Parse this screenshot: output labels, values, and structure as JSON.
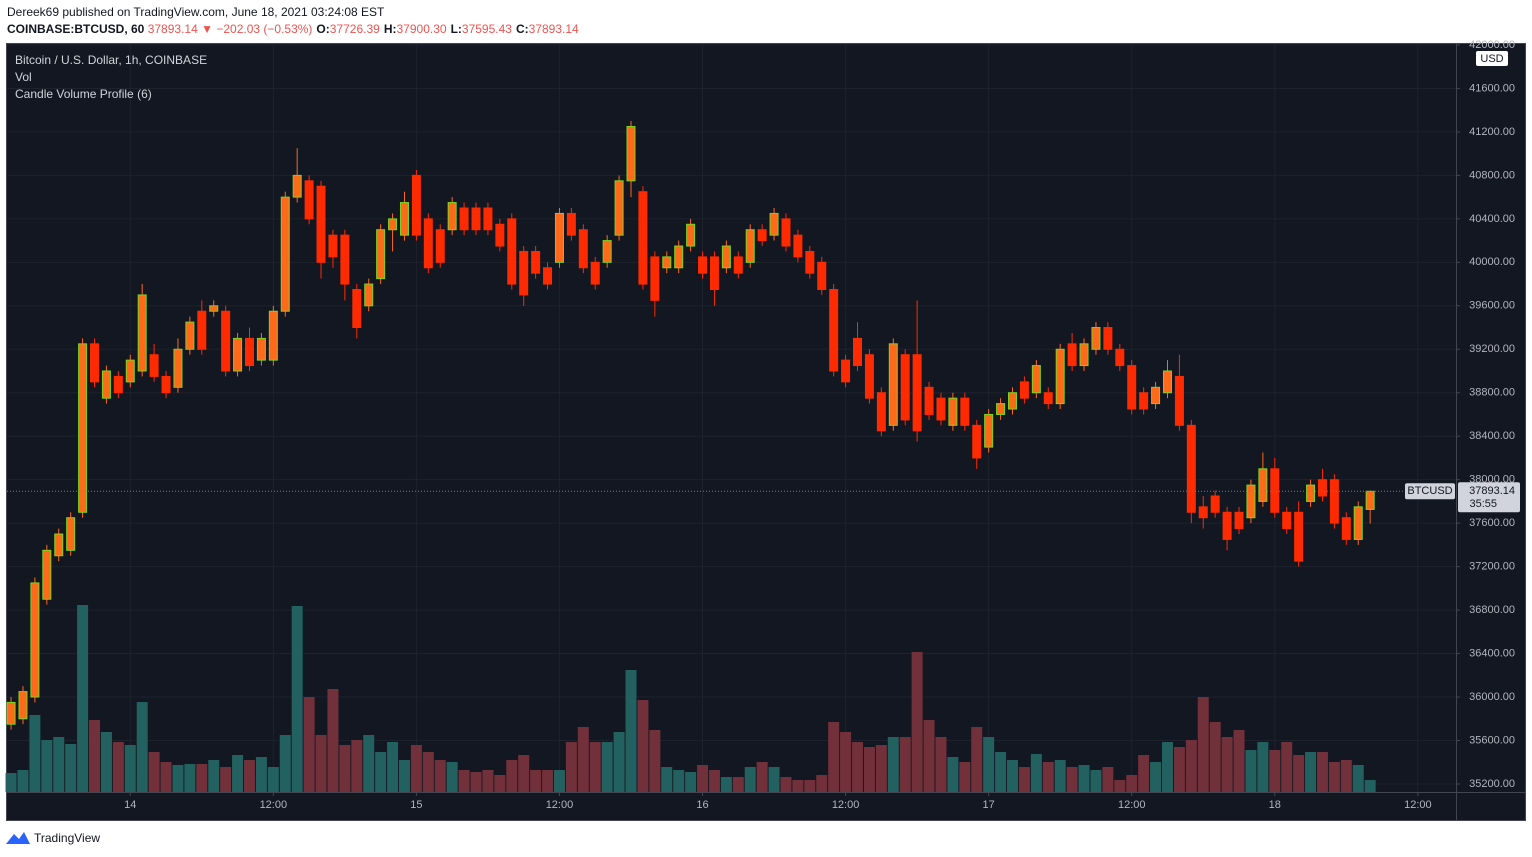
{
  "header": {
    "published": "Dereek69 published on TradingView.com, June 18, 2021 03:24:08 EST",
    "symbol": "COINBASE:BTCUSD, 60",
    "last": "37893.14",
    "arrow": "▼",
    "change": "−202.03 (−0.53%)",
    "ohlc": [
      {
        "key": "O:",
        "value": "37726.39"
      },
      {
        "key": "H:",
        "value": "37900.30"
      },
      {
        "key": "L:",
        "value": "37595.43"
      },
      {
        "key": "C:",
        "value": "37893.14"
      }
    ]
  },
  "footer": {
    "brand": "TradingView"
  },
  "chart_data": {
    "type": "candlestick",
    "legend": [
      "Bitcoin / U.S. Dollar, 1h, COINBASE",
      "Vol",
      "Candle Volume Profile (6)"
    ],
    "currency": "USD",
    "price_tag": "BTCUSD",
    "countdown": "35:55",
    "up_color": "#ff6a1a",
    "up_border": "#7ed321",
    "down_color": "#ff2a00",
    "volume_up_color": "#22615f",
    "volume_down_color": "#72303a",
    "grid": true,
    "xlim": [
      -0.34,
      121.2
    ],
    "xticks": [
      {
        "value": 10,
        "label": "14"
      },
      {
        "value": 22,
        "label": "12:00"
      },
      {
        "value": 34,
        "label": "15"
      },
      {
        "value": 46,
        "label": "12:00"
      },
      {
        "value": 58,
        "label": "16"
      },
      {
        "value": 70,
        "label": "12:00"
      },
      {
        "value": 82,
        "label": "17"
      },
      {
        "value": 94,
        "label": "12:00"
      },
      {
        "value": 106,
        "label": "18"
      },
      {
        "value": 118,
        "label": "12:00"
      }
    ],
    "ylim": [
      35126,
      42009
    ],
    "yticks": [
      {
        "value": 35200,
        "label": "35200.00"
      },
      {
        "value": 35600,
        "label": "35600.00"
      },
      {
        "value": 36000,
        "label": "36000.00"
      },
      {
        "value": 36400,
        "label": "36400.00"
      },
      {
        "value": 36800,
        "label": "36800.00"
      },
      {
        "value": 37200,
        "label": "37200.00"
      },
      {
        "value": 37600,
        "label": "37600.00"
      },
      {
        "value": 38000,
        "label": "38000.00"
      },
      {
        "value": 38400,
        "label": "38400.00"
      },
      {
        "value": 38800,
        "label": "38800.00"
      },
      {
        "value": 39200,
        "label": "39200.00"
      },
      {
        "value": 39600,
        "label": "39600.00"
      },
      {
        "value": 40000,
        "label": "40000.00"
      },
      {
        "value": 40400,
        "label": "40400.00"
      },
      {
        "value": 40800,
        "label": "40800.00"
      },
      {
        "value": 41200,
        "label": "41200.00"
      },
      {
        "value": 41600,
        "label": "41600.00"
      },
      {
        "value": 42000,
        "label": "42000.00"
      }
    ],
    "volume_lim": [
      0,
      190
    ],
    "open": [
      35750,
      35800,
      36000,
      36900,
      37300,
      37350,
      37700,
      39250,
      38750,
      38950,
      38900,
      39000,
      39150,
      38950,
      38850,
      39200,
      39550,
      39550,
      39550,
      39000,
      39300,
      39100,
      39100,
      39550,
      40600,
      40750,
      40700,
      40250,
      40250,
      39750,
      39600,
      39850,
      40300,
      40250,
      40800,
      40400,
      40300,
      40300,
      40500,
      40500,
      40500,
      40350,
      40400,
      40100,
      40100,
      39950,
      40000,
      40450,
      40300,
      40000,
      40000,
      40250,
      40750,
      40650,
      40050,
      39950,
      39950,
      40150,
      40050,
      40050,
      39950,
      40050,
      40000,
      40300,
      40250,
      40400,
      40250,
      40100,
      40000,
      39750,
      39100,
      39300,
      39150,
      38800,
      38500,
      39150,
      39150,
      38850,
      38750,
      38500,
      38750,
      38500,
      38300,
      38600,
      38650,
      38900,
      38800,
      38800,
      38700,
      39250,
      39050,
      39200,
      39400,
      39200,
      39050,
      38800,
      38700,
      38800,
      38950,
      38500,
      37750,
      37850,
      37700,
      37700,
      37650,
      37800,
      38100,
      37700,
      37700,
      37800,
      38000,
      38000,
      37650,
      37450,
      37726.39
    ],
    "high": [
      36000,
      36100,
      37100,
      37400,
      37550,
      37700,
      39300,
      39300,
      39050,
      39000,
      39150,
      39800,
      39250,
      39000,
      39300,
      39500,
      39650,
      39650,
      39600,
      39350,
      39400,
      39350,
      39600,
      40650,
      41050,
      40800,
      40750,
      40300,
      40300,
      39800,
      39850,
      40350,
      40450,
      40650,
      40850,
      40450,
      40350,
      40600,
      40550,
      40550,
      40550,
      40400,
      40450,
      40150,
      40150,
      40000,
      40500,
      40500,
      40350,
      40050,
      40250,
      40800,
      41300,
      40700,
      40100,
      40100,
      40200,
      40400,
      40100,
      40100,
      40200,
      40100,
      40350,
      40350,
      40500,
      40450,
      40300,
      40150,
      40050,
      39800,
      39150,
      39450,
      39200,
      38850,
      39300,
      39200,
      39650,
      38900,
      38800,
      38800,
      38800,
      38550,
      38650,
      38750,
      38850,
      38950,
      39100,
      38850,
      39250,
      39350,
      39300,
      39450,
      39450,
      39250,
      39100,
      38850,
      38900,
      39100,
      39150,
      38550,
      37850,
      37900,
      37750,
      37750,
      38000,
      38250,
      38200,
      37750,
      37800,
      38000,
      38100,
      38050,
      37700,
      37800,
      37900.3
    ],
    "low": [
      35700,
      35750,
      35950,
      36850,
      37250,
      37300,
      37650,
      38850,
      38700,
      38750,
      38850,
      38950,
      38900,
      38750,
      38800,
      39150,
      39150,
      39500,
      38950,
      38950,
      39000,
      39050,
      39050,
      39500,
      40550,
      40350,
      39850,
      39950,
      39650,
      39300,
      39550,
      39800,
      40100,
      40200,
      40200,
      39900,
      39950,
      40250,
      40250,
      40250,
      40250,
      40100,
      39750,
      39600,
      39850,
      39750,
      39950,
      40200,
      39900,
      39750,
      39950,
      40200,
      40600,
      39750,
      39500,
      39900,
      39900,
      40100,
      39850,
      39600,
      39900,
      39850,
      39950,
      40150,
      40200,
      40100,
      40000,
      39850,
      39700,
      38950,
      38850,
      39000,
      38700,
      38400,
      38450,
      38500,
      38350,
      38550,
      38500,
      38450,
      38450,
      38100,
      38250,
      38550,
      38600,
      38700,
      38750,
      38650,
      38650,
      39000,
      39000,
      39150,
      39150,
      39000,
      38600,
      38600,
      38650,
      38750,
      38450,
      37600,
      37550,
      37650,
      37350,
      37500,
      37600,
      37750,
      37650,
      37500,
      37200,
      37750,
      37800,
      37550,
      37400,
      37400,
      37595.43
    ],
    "close": [
      35950,
      36050,
      37050,
      37350,
      37500,
      37650,
      39250,
      38900,
      39000,
      38800,
      39100,
      39700,
      38950,
      38800,
      39200,
      39450,
      39200,
      39600,
      39000,
      39300,
      39050,
      39300,
      39550,
      40600,
      40800,
      40400,
      40000,
      40050,
      39800,
      39400,
      39800,
      40300,
      40400,
      40550,
      40250,
      39950,
      40000,
      40550,
      40300,
      40300,
      40300,
      40150,
      39800,
      39700,
      39900,
      39800,
      40450,
      40250,
      39950,
      39800,
      40200,
      40750,
      41250,
      39800,
      39650,
      40050,
      40150,
      40350,
      39900,
      39750,
      40150,
      39900,
      40300,
      40200,
      40450,
      40150,
      40050,
      39900,
      39750,
      39000,
      38900,
      39050,
      38750,
      38450,
      39250,
      38550,
      38450,
      38600,
      38550,
      38750,
      38500,
      38200,
      38600,
      38700,
      38800,
      38750,
      39050,
      38700,
      39200,
      39050,
      39250,
      39400,
      39200,
      39050,
      38650,
      38650,
      38850,
      39000,
      38500,
      37700,
      37650,
      37700,
      37450,
      37550,
      37950,
      38100,
      37700,
      37550,
      37250,
      37950,
      37850,
      37600,
      37450,
      37750,
      37893.14
    ],
    "volume": [
      19,
      22,
      77,
      52,
      55,
      48,
      187,
      72,
      60,
      50,
      47,
      90,
      40,
      30,
      27,
      28,
      28,
      32,
      25,
      37,
      32,
      35,
      25,
      57,
      186,
      95,
      57,
      103,
      47,
      52,
      57,
      40,
      50,
      32,
      47,
      40,
      32,
      30,
      22,
      20,
      22,
      17,
      32,
      37,
      22,
      22,
      22,
      50,
      65,
      50,
      50,
      60,
      122,
      92,
      62,
      25,
      22,
      20,
      27,
      22,
      15,
      15,
      25,
      30,
      25,
      15,
      12,
      12,
      17,
      70,
      60,
      50,
      45,
      47,
      55,
      55,
      140,
      72,
      55,
      35,
      30,
      65,
      55,
      40,
      32,
      25,
      38,
      30,
      32,
      25,
      27,
      22,
      25,
      12,
      17,
      37,
      30,
      50,
      45,
      52,
      95,
      70,
      55,
      62,
      42,
      50,
      42,
      50,
      37,
      40,
      40,
      30,
      32,
      27,
      12
    ]
  }
}
